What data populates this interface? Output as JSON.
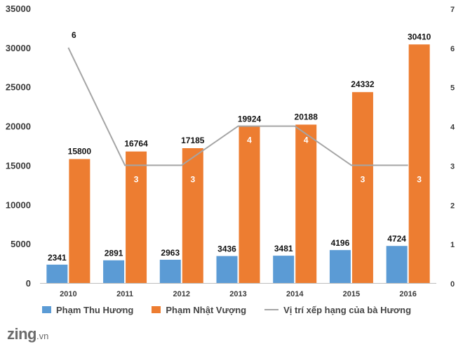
{
  "chart_data": {
    "type": "bar",
    "categories": [
      "2010",
      "2011",
      "2012",
      "2013",
      "2014",
      "2015",
      "2016"
    ],
    "series": [
      {
        "name": "Phạm Thu Hương",
        "kind": "bar",
        "axis": "left",
        "color": "#5b9bd5",
        "values": [
          2341,
          2891,
          2963,
          3436,
          3481,
          4196,
          4724
        ]
      },
      {
        "name": "Phạm Nhật Vượng",
        "kind": "bar",
        "axis": "left",
        "color": "#ed7d31",
        "values": [
          15800,
          16764,
          17185,
          19924,
          20188,
          24332,
          30410
        ]
      },
      {
        "name": "Vị trí xếp hạng của bà Hương",
        "kind": "line",
        "axis": "right",
        "color": "#a5a5a5",
        "values": [
          6,
          3,
          3,
          4,
          4,
          3,
          3
        ]
      }
    ],
    "ylim": [
      0,
      35000
    ],
    "yticks": [
      0,
      5000,
      10000,
      15000,
      20000,
      25000,
      30000,
      35000
    ],
    "y2lim": [
      0,
      7
    ],
    "y2ticks": [
      0,
      1,
      2,
      3,
      4,
      5,
      6,
      7
    ],
    "legend_position": "bottom",
    "grid": false
  },
  "watermark": {
    "brand": "zing",
    "suffix": ".vn"
  }
}
